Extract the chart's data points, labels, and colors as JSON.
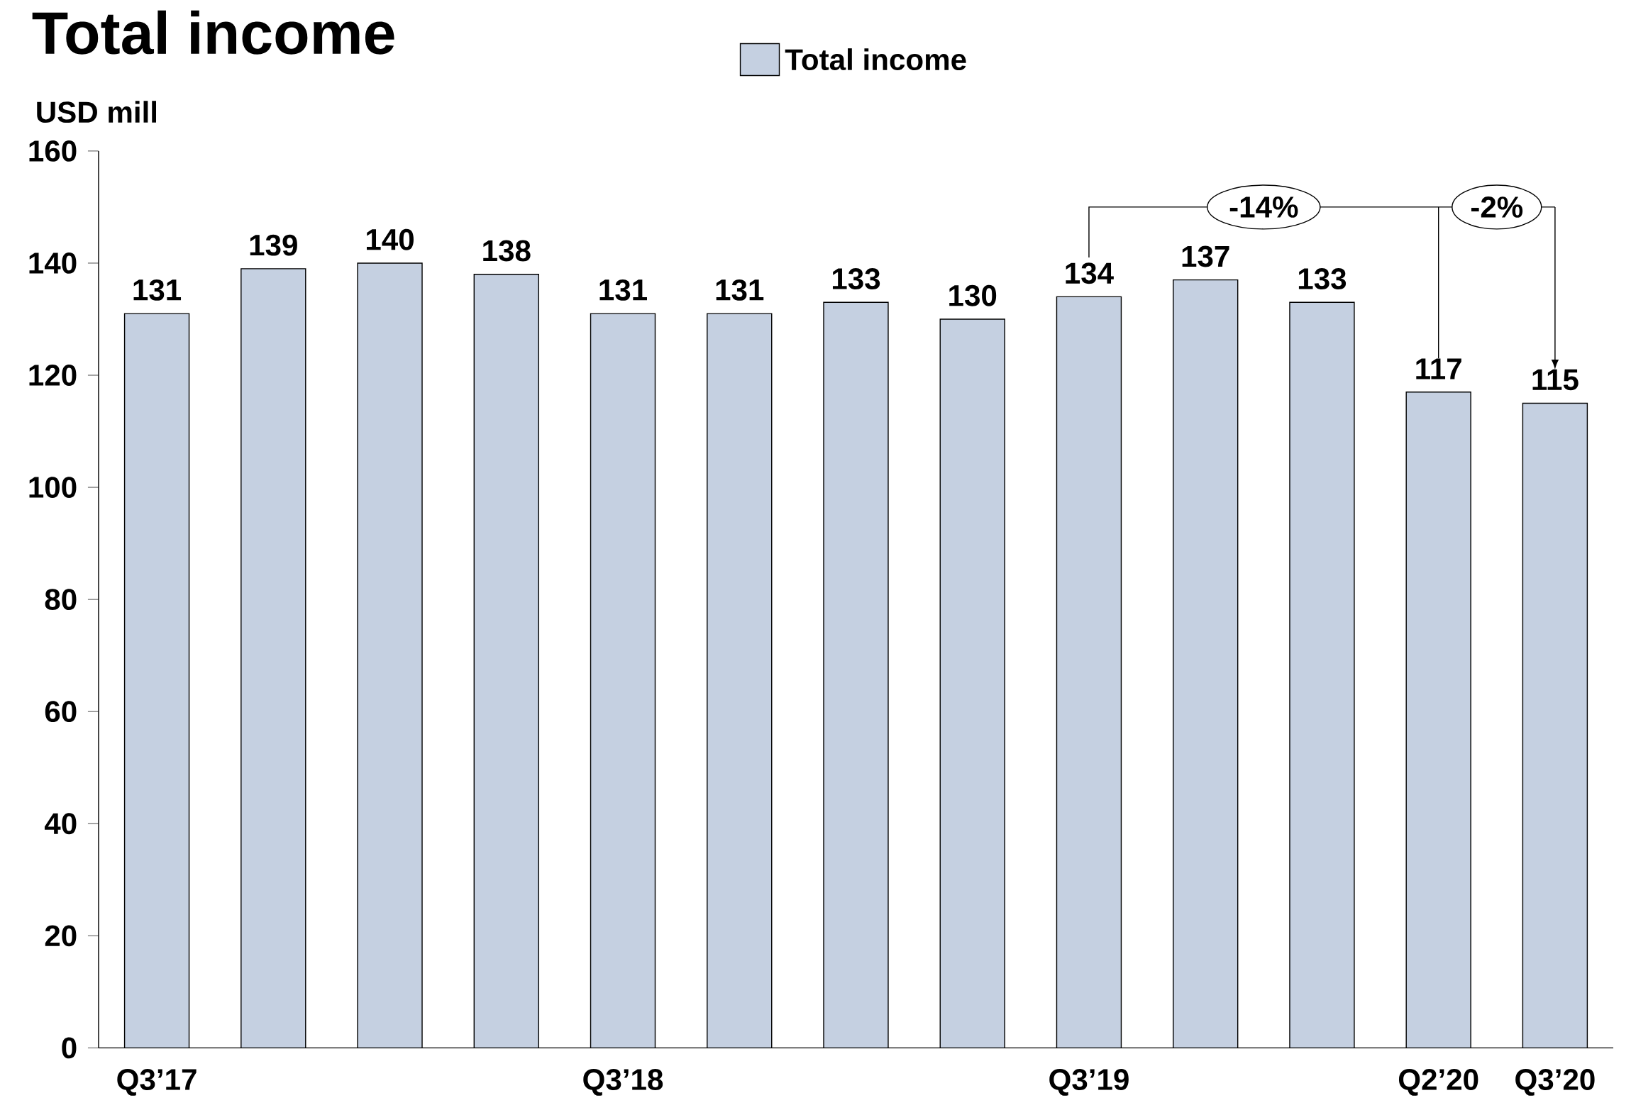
{
  "chart_data": {
    "type": "bar",
    "title": "Total income",
    "ylabel": "USD mill",
    "categories": [
      "Q3’17",
      null,
      null,
      null,
      "Q3’18",
      null,
      null,
      null,
      "Q3’19",
      null,
      null,
      "Q2’20",
      "Q3’20"
    ],
    "series": [
      {
        "name": "Total income",
        "color": "#c5d0e1",
        "values": [
          131,
          139,
          140,
          138,
          131,
          131,
          133,
          130,
          134,
          137,
          133,
          117,
          115
        ]
      }
    ],
    "ylim": [
      0,
      160
    ],
    "yticks": [
      0,
      20,
      40,
      60,
      80,
      100,
      120,
      140,
      160
    ],
    "data_labels": true,
    "legend": "top",
    "grid": false,
    "annotations": [
      "-14%",
      "-2%"
    ]
  }
}
